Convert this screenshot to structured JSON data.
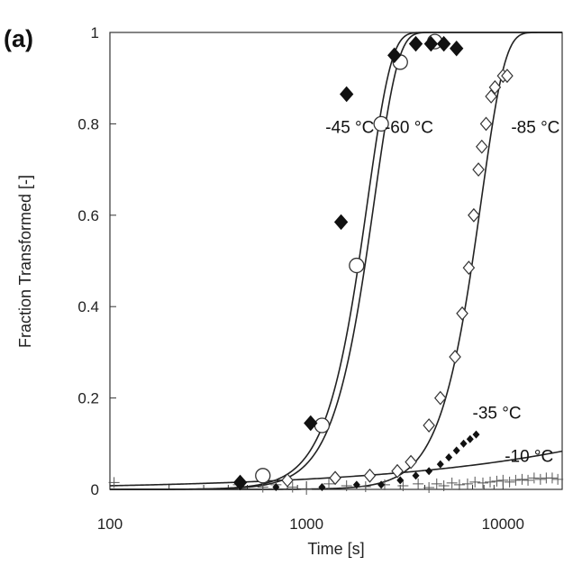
{
  "panel_label": "(a)",
  "chart_data": {
    "type": "scatter",
    "title": "",
    "xlabel": "Time [s]",
    "ylabel": "Fraction Transformed [-]",
    "x_scale": "log",
    "xlim": [
      100,
      20000
    ],
    "ylim": [
      0,
      1
    ],
    "x_ticks": [
      100,
      1000,
      10000
    ],
    "x_tick_labels": [
      "100",
      "1000",
      "10000"
    ],
    "y_ticks": [
      0,
      0.2,
      0.4,
      0.6,
      0.8,
      1
    ],
    "y_tick_labels": [
      "0",
      "0.2",
      "0.4",
      "0.6",
      "0.8",
      "1"
    ],
    "grid": false,
    "series": [
      {
        "name": "-45 °C",
        "marker": "filled-diamond",
        "points": [
          [
            460,
            0.015
          ],
          [
            1050,
            0.145
          ],
          [
            1500,
            0.585
          ],
          [
            1600,
            0.865
          ],
          [
            2800,
            0.95
          ],
          [
            3600,
            0.975
          ],
          [
            4300,
            0.975
          ],
          [
            5000,
            0.975
          ],
          [
            5800,
            0.965
          ]
        ],
        "fit": {
          "t50": 1850,
          "n": 3.6
        }
      },
      {
        "name": "-60 °C",
        "marker": "open-circle",
        "points": [
          [
            600,
            0.03
          ],
          [
            1200,
            0.14
          ],
          [
            1800,
            0.49
          ],
          [
            2400,
            0.8
          ],
          [
            3000,
            0.935
          ],
          [
            4500,
            0.98
          ]
        ],
        "fit": {
          "t50": 2000,
          "n": 3.6
        }
      },
      {
        "name": "-85 °C",
        "marker": "open-diamond",
        "points": [
          [
            800,
            0.02
          ],
          [
            1400,
            0.025
          ],
          [
            2100,
            0.03
          ],
          [
            2900,
            0.04
          ],
          [
            3400,
            0.06
          ],
          [
            4200,
            0.14
          ],
          [
            4800,
            0.2
          ],
          [
            5700,
            0.29
          ],
          [
            6200,
            0.385
          ],
          [
            6700,
            0.485
          ],
          [
            7100,
            0.6
          ],
          [
            7500,
            0.7
          ],
          [
            7800,
            0.75
          ],
          [
            8200,
            0.8
          ],
          [
            8700,
            0.86
          ],
          [
            9100,
            0.88
          ],
          [
            10000,
            0.905
          ],
          [
            10500,
            0.905
          ]
        ],
        "fit": {
          "t50": 7000,
          "n": 3.6
        }
      },
      {
        "name": "-35 °C",
        "marker": "small-filled-diamond",
        "points": [
          [
            700,
            0.005
          ],
          [
            1200,
            0.005
          ],
          [
            1800,
            0.01
          ],
          [
            2400,
            0.01
          ],
          [
            3000,
            0.02
          ],
          [
            3600,
            0.03
          ],
          [
            4200,
            0.04
          ],
          [
            4800,
            0.055
          ],
          [
            5300,
            0.07
          ],
          [
            5800,
            0.085
          ],
          [
            6300,
            0.1
          ],
          [
            6800,
            0.11
          ],
          [
            7300,
            0.12
          ]
        ]
      },
      {
        "name": "-10 °C",
        "marker": "plus",
        "points": [
          [
            105,
            0.015
          ],
          [
            450,
            0.01
          ],
          [
            600,
            0.005
          ],
          [
            700,
            0.01
          ],
          [
            850,
            0.005
          ],
          [
            1000,
            0.0
          ],
          [
            1300,
            0.012
          ],
          [
            1600,
            0.008
          ],
          [
            2000,
            0.006
          ],
          [
            2500,
            0.01
          ],
          [
            3100,
            0.008
          ],
          [
            3700,
            0.012
          ],
          [
            4200,
            0.004
          ],
          [
            4600,
            0.012
          ],
          [
            5000,
            0.008
          ],
          [
            5500,
            0.014
          ],
          [
            6000,
            0.01
          ],
          [
            6600,
            0.012
          ],
          [
            7200,
            0.016
          ],
          [
            7900,
            0.014
          ],
          [
            8600,
            0.016
          ],
          [
            9300,
            0.018
          ],
          [
            10000,
            0.02
          ],
          [
            10800,
            0.016
          ],
          [
            11600,
            0.02
          ],
          [
            12500,
            0.022
          ],
          [
            13400,
            0.02
          ],
          [
            14400,
            0.025
          ],
          [
            15500,
            0.022
          ],
          [
            16600,
            0.025
          ],
          [
            17800,
            0.025
          ],
          [
            19000,
            0.022
          ]
        ],
        "fit": {
          "t50": 2000000,
          "n": 0.45
        }
      }
    ],
    "annotations": [
      {
        "text": "-45 °C",
        "x": 1250,
        "y": 0.78
      },
      {
        "text": "-60 °C",
        "x": 2500,
        "y": 0.78
      },
      {
        "text": "-85 °C",
        "x": 11000,
        "y": 0.78
      },
      {
        "text": "-35 °C",
        "x": 7000,
        "y": 0.155
      },
      {
        "text": "-10 °C",
        "x": 10200,
        "y": 0.06
      }
    ]
  }
}
